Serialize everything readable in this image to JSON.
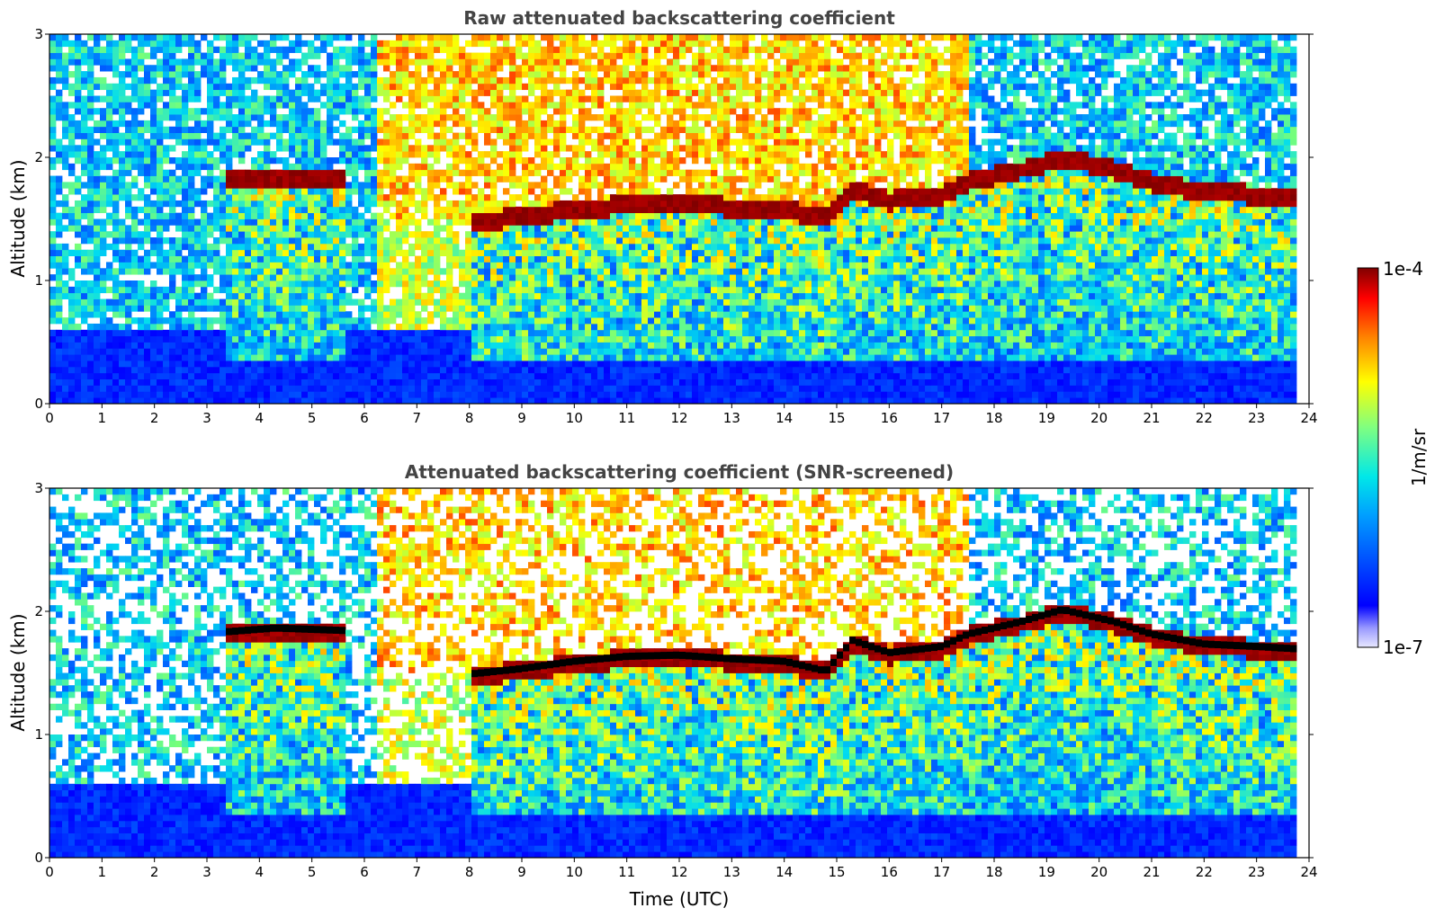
{
  "chart_data": [
    {
      "type": "heatmap",
      "title": "Raw attenuated backscattering coefficient",
      "xlabel": "",
      "ylabel": "Altitude (km)",
      "xlim": [
        0,
        24
      ],
      "ylim": [
        0,
        3
      ],
      "xticks": [
        0,
        1,
        2,
        3,
        4,
        5,
        6,
        7,
        8,
        9,
        10,
        11,
        12,
        13,
        14,
        15,
        16,
        17,
        18,
        19,
        20,
        21,
        22,
        23,
        24
      ],
      "yticks": [
        0,
        1,
        2,
        3
      ],
      "screened": false,
      "cloud_top_km": [
        {
          "t": 3.4,
          "z": 1.82
        },
        {
          "t": 4.3,
          "z": 1.85
        },
        {
          "t": 5.6,
          "z": 1.83
        },
        {
          "t": 8.1,
          "z": 1.48
        },
        {
          "t": 9.0,
          "z": 1.52
        },
        {
          "t": 10.0,
          "z": 1.58
        },
        {
          "t": 11.0,
          "z": 1.62
        },
        {
          "t": 12.0,
          "z": 1.63
        },
        {
          "t": 13.0,
          "z": 1.6
        },
        {
          "t": 14.0,
          "z": 1.58
        },
        {
          "t": 14.8,
          "z": 1.5
        },
        {
          "t": 15.3,
          "z": 1.75
        },
        {
          "t": 16.0,
          "z": 1.65
        },
        {
          "t": 17.0,
          "z": 1.7
        },
        {
          "t": 17.5,
          "z": 1.8
        },
        {
          "t": 18.5,
          "z": 1.9
        },
        {
          "t": 19.3,
          "z": 2.0
        },
        {
          "t": 20.3,
          "z": 1.9
        },
        {
          "t": 21.0,
          "z": 1.8
        },
        {
          "t": 22.0,
          "z": 1.72
        },
        {
          "t": 23.0,
          "z": 1.7
        },
        {
          "t": 23.8,
          "z": 1.68
        }
      ]
    },
    {
      "type": "heatmap",
      "title": "Attenuated backscattering coefficient (SNR-screened)",
      "xlabel": "Time (UTC)",
      "ylabel": "Altitude (km)",
      "xlim": [
        0,
        24
      ],
      "ylim": [
        0,
        3
      ],
      "xticks": [
        0,
        1,
        2,
        3,
        4,
        5,
        6,
        7,
        8,
        9,
        10,
        11,
        12,
        13,
        14,
        15,
        16,
        17,
        18,
        19,
        20,
        21,
        22,
        23,
        24
      ],
      "yticks": [
        0,
        1,
        2,
        3
      ],
      "screened": true,
      "cloud_top_km": [
        {
          "t": 3.4,
          "z": 1.82
        },
        {
          "t": 4.3,
          "z": 1.85
        },
        {
          "t": 5.6,
          "z": 1.83
        },
        {
          "t": 8.1,
          "z": 1.48
        },
        {
          "t": 9.0,
          "z": 1.52
        },
        {
          "t": 10.0,
          "z": 1.58
        },
        {
          "t": 11.0,
          "z": 1.62
        },
        {
          "t": 12.0,
          "z": 1.63
        },
        {
          "t": 13.0,
          "z": 1.6
        },
        {
          "t": 14.0,
          "z": 1.58
        },
        {
          "t": 14.8,
          "z": 1.5
        },
        {
          "t": 15.3,
          "z": 1.75
        },
        {
          "t": 16.0,
          "z": 1.65
        },
        {
          "t": 17.0,
          "z": 1.7
        },
        {
          "t": 17.5,
          "z": 1.8
        },
        {
          "t": 18.5,
          "z": 1.9
        },
        {
          "t": 19.3,
          "z": 2.0
        },
        {
          "t": 20.3,
          "z": 1.9
        },
        {
          "t": 21.0,
          "z": 1.8
        },
        {
          "t": 22.0,
          "z": 1.72
        },
        {
          "t": 23.0,
          "z": 1.7
        },
        {
          "t": 23.8,
          "z": 1.68
        }
      ]
    }
  ],
  "colorbar": {
    "label": "1/m/sr",
    "max_label": "1e-4",
    "min_label": "1e-7",
    "scale": "log",
    "colormap": "jet"
  }
}
